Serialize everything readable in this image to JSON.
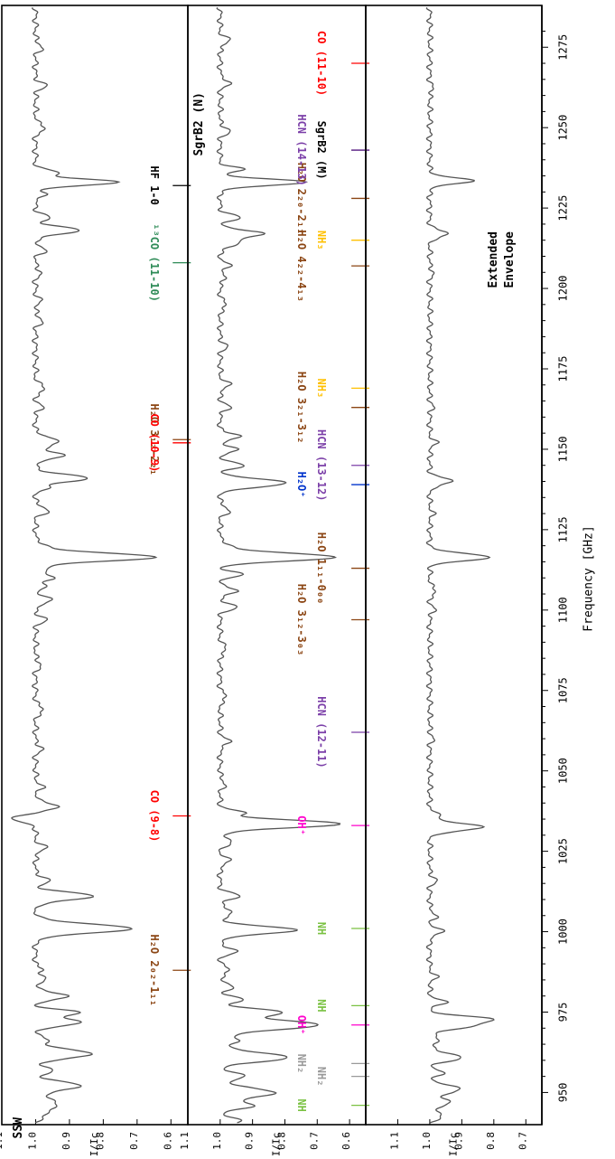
{
  "figure": {
    "xlabel": "Frequency [GHz]",
    "x_ticks": [
      950,
      975,
      1000,
      1025,
      1050,
      1075,
      1100,
      1125,
      1150,
      1175,
      1200,
      1225,
      1250,
      1275
    ],
    "colors": {
      "trace": "#555555",
      "co": "#ff0000",
      "h2o": "#8b4513",
      "hcn": "#7b3fa8",
      "nh": "#7ac142",
      "nh2": "#999999",
      "nh3": "#ffc000",
      "oh_plus": "#ff00cc",
      "h2o_plus": "#0033cc",
      "co13": "#2e8b57"
    }
  },
  "chart_data": [
    {
      "type": "line",
      "panel_label": "SSW",
      "ylabel": "I/Ic",
      "y_ticks": [
        1.1,
        1.0,
        0.9,
        0.8,
        0.7,
        0.6
      ],
      "ylim": [
        0.55,
        1.1
      ],
      "xlim": [
        940,
        1288
      ],
      "series": [
        {
          "continuum": 1.0,
          "features": [
            [
              944,
              0.96,
              1.5
            ],
            [
              947,
              0.94,
              1.2
            ],
            [
              952,
              0.87,
              1.4
            ],
            [
              957,
              0.95,
              1.0
            ],
            [
              962,
              0.83,
              1.3
            ],
            [
              966,
              0.96,
              1.0
            ],
            [
              972,
              0.87,
              1.3
            ],
            [
              975,
              0.88,
              0.8
            ],
            [
              980,
              0.9,
              1.0
            ],
            [
              985,
              0.97,
              1.0
            ],
            [
              988,
              0.975,
              0.7
            ],
            [
              1001,
              0.72,
              1.4
            ],
            [
              1011,
              0.83,
              1.2
            ],
            [
              1016,
              0.96,
              1.0
            ],
            [
              1026,
              0.97,
              1.0
            ],
            [
              1035,
              1.07,
              1.0
            ],
            [
              1039,
              0.93,
              1.0
            ],
            [
              1045,
              0.98,
              1.0
            ],
            [
              1057,
              0.98,
              0.9
            ],
            [
              1069,
              0.975,
              1.0
            ],
            [
              1083,
              0.985,
              1.0
            ],
            [
              1097,
              0.97,
              1.0
            ],
            [
              1103,
              0.95,
              1.0
            ],
            [
              1107,
              0.97,
              0.8
            ],
            [
              1110,
              0.94,
              0.9
            ],
            [
              1113,
              0.96,
              0.8
            ],
            [
              1116.5,
              0.64,
              1.2
            ],
            [
              1120,
              0.97,
              1.0
            ],
            [
              1131,
              0.96,
              1.0
            ],
            [
              1138,
              0.97,
              0.8
            ],
            [
              1141,
              0.85,
              1.2
            ],
            [
              1148,
              0.92,
              1.1
            ],
            [
              1151,
              0.96,
              0.8
            ],
            [
              1153,
              0.94,
              1.0
            ],
            [
              1163,
              0.98,
              1.0
            ],
            [
              1169,
              0.97,
              1.0
            ],
            [
              1190,
              0.98,
              1.0
            ],
            [
              1196,
              0.985,
              1.0
            ],
            [
              1205,
              0.985,
              1.0
            ],
            [
              1212,
              0.97,
              1.0
            ],
            [
              1218,
              0.87,
              1.1
            ],
            [
              1222,
              0.96,
              1.0
            ],
            [
              1229,
              0.97,
              0.8
            ],
            [
              1233,
              0.76,
              1.0
            ],
            [
              1236,
              0.93,
              0.8
            ],
            [
              1250,
              0.97,
              1.0
            ],
            [
              1263,
              0.97,
              1.0
            ],
            [
              1275,
              0.98,
              1.0
            ]
          ]
        }
      ],
      "annotations": [
        {
          "text": "H₂O 2₀₂-1₁₁",
          "x": 988,
          "color": "h2o"
        },
        {
          "text": "CO (9-8)",
          "x": 1036,
          "color": "co"
        },
        {
          "text": "H₂O 3₁₂-2₂₁",
          "x": 1153,
          "color": "h2o"
        },
        {
          "text": "CO (10-9)",
          "x": 1152,
          "color": "co"
        },
        {
          "text": "¹³CO (11-10)",
          "x": 1208,
          "color": "co13"
        },
        {
          "text": "HF 1-0",
          "x": 1232,
          "color": "black"
        }
      ]
    },
    {
      "type": "line",
      "panel_label": "SgrB2 (N)",
      "ylabel": "I/Ic",
      "y_ticks": [
        1.1,
        1.0,
        0.9,
        0.8,
        0.7,
        0.6
      ],
      "ylim": [
        0.55,
        1.1
      ],
      "xlim": [
        940,
        1288
      ],
      "series": [
        {
          "continuum": 1.0,
          "features": [
            [
              941,
              0.94,
              1.2
            ],
            [
              946,
              0.9,
              1.1
            ],
            [
              950,
              0.83,
              1.4
            ],
            [
              955,
              0.92,
              1.0
            ],
            [
              961,
              0.79,
              1.4
            ],
            [
              966,
              0.94,
              1.0
            ],
            [
              971,
              0.7,
              1.5
            ],
            [
              975,
              0.82,
              1.1
            ],
            [
              979,
              0.93,
              0.9
            ],
            [
              983,
              0.96,
              1.0
            ],
            [
              988,
              0.97,
              1.0
            ],
            [
              994,
              0.95,
              1.0
            ],
            [
              1000.5,
              0.77,
              1.2
            ],
            [
              1006,
              0.96,
              1.0
            ],
            [
              1011,
              0.94,
              1.0
            ],
            [
              1022,
              0.97,
              1.0
            ],
            [
              1028,
              0.96,
              1.0
            ],
            [
              1033.5,
              0.63,
              1.2
            ],
            [
              1037,
              0.93,
              0.8
            ],
            [
              1046,
              0.985,
              1.0
            ],
            [
              1059,
              0.97,
              1.0
            ],
            [
              1073,
              0.98,
              1.0
            ],
            [
              1088,
              0.98,
              1.0
            ],
            [
              1101,
              0.95,
              1.0
            ],
            [
              1106,
              0.94,
              0.8
            ],
            [
              1111,
              0.93,
              0.8
            ],
            [
              1116.5,
              0.64,
              1.2
            ],
            [
              1120,
              0.97,
              1.0
            ],
            [
              1131,
              0.97,
              1.0
            ],
            [
              1139.5,
              0.79,
              1.2
            ],
            [
              1145,
              0.93,
              1.0
            ],
            [
              1150,
              0.94,
              0.8
            ],
            [
              1154,
              0.93,
              0.8
            ],
            [
              1163,
              0.97,
              1.0
            ],
            [
              1170,
              0.97,
              1.0
            ],
            [
              1182,
              0.98,
              1.0
            ],
            [
              1195,
              0.98,
              1.0
            ],
            [
              1203,
              0.985,
              1.0
            ],
            [
              1207,
              0.97,
              1.0
            ],
            [
              1214,
              0.94,
              1.0
            ],
            [
              1217,
              0.86,
              1.0
            ],
            [
              1222,
              0.94,
              1.0
            ],
            [
              1233,
              0.74,
              1.0
            ],
            [
              1237,
              0.93,
              0.8
            ],
            [
              1249,
              0.97,
              1.0
            ],
            [
              1264,
              0.97,
              1.0
            ],
            [
              1277,
              0.97,
              1.0
            ]
          ]
        }
      ],
      "annotations": [
        {
          "text": "NH",
          "x": 946,
          "color": "nh"
        },
        {
          "text": "NH₂",
          "x": 955,
          "color": "nh2"
        },
        {
          "text": "NH₂",
          "x": 959,
          "color": "nh2"
        },
        {
          "text": "NH",
          "x": 977,
          "color": "nh"
        },
        {
          "text": "OH⁺",
          "x": 971,
          "color": "oh_plus"
        },
        {
          "text": "NH",
          "x": 1001,
          "color": "nh"
        },
        {
          "text": "OH⁺",
          "x": 1033,
          "color": "oh_plus"
        },
        {
          "text": "HCN (12-11)",
          "x": 1062,
          "color": "hcn"
        },
        {
          "text": "H₂O 3₁₂-3₀₃",
          "x": 1097,
          "color": "h2o"
        },
        {
          "text": "H₂O 1₁₁-0₀₀",
          "x": 1113,
          "color": "h2o"
        },
        {
          "text": "H₂O⁺",
          "x": 1139,
          "color": "h2o_plus"
        },
        {
          "text": "HCN (13-12)",
          "x": 1145,
          "color": "hcn"
        },
        {
          "text": "H₂O 3₂₁-3₁₂",
          "x": 1163,
          "color": "h2o"
        },
        {
          "text": "NH₃",
          "x": 1169,
          "color": "nh3"
        },
        {
          "text": "H₂O 4₂₂-4₁₃",
          "x": 1207,
          "color": "h2o"
        },
        {
          "text": "NH₃",
          "x": 1215,
          "color": "nh3"
        },
        {
          "text": "H₂O 2₂₀-2₁₁",
          "x": 1228,
          "color": "h2o"
        },
        {
          "text": "SgrB2 (M)",
          "x": 1243,
          "color": "black"
        },
        {
          "text": "HCN (14-13)",
          "x": 1243,
          "color": "hcn"
        },
        {
          "text": "CO (11-10)",
          "x": 1270,
          "color": "co"
        }
      ]
    },
    {
      "type": "line",
      "panel_label": "Extended Envelope",
      "ylabel": "I/Ic",
      "y_ticks": [
        1.1,
        1.0,
        0.9,
        0.8,
        0.7
      ],
      "ylim": [
        0.65,
        1.2
      ],
      "xlim": [
        940,
        1288
      ],
      "series": [
        {
          "continuum": 1.0,
          "features": [
            [
              943,
              0.96,
              1.2
            ],
            [
              947,
              0.93,
              1.0
            ],
            [
              951,
              0.9,
              1.2
            ],
            [
              956,
              0.96,
              1.0
            ],
            [
              961,
              0.9,
              1.2
            ],
            [
              966,
              0.97,
              1.0
            ],
            [
              971,
              0.86,
              1.3
            ],
            [
              973,
              0.84,
              0.8
            ],
            [
              978,
              0.95,
              0.9
            ],
            [
              986,
              0.98,
              1.0
            ],
            [
              1000,
              0.96,
              1.0
            ],
            [
              1005,
              0.98,
              1.0
            ],
            [
              1016,
              0.98,
              1.0
            ],
            [
              1032.5,
              0.83,
              1.1
            ],
            [
              1036,
              0.96,
              0.8
            ],
            [
              1060,
              0.99,
              1.0
            ],
            [
              1100,
              0.985,
              1.0
            ],
            [
              1106,
              0.98,
              1.0
            ],
            [
              1116.5,
              0.81,
              1.1
            ],
            [
              1130,
              0.99,
              1.0
            ],
            [
              1140,
              0.93,
              1.1
            ],
            [
              1152,
              0.98,
              1.0
            ],
            [
              1163,
              0.99,
              1.0
            ],
            [
              1205,
              0.99,
              1.0
            ],
            [
              1217,
              0.94,
              1.0
            ],
            [
              1233.5,
              0.87,
              1.0
            ],
            [
              1262,
              0.99,
              1.0
            ]
          ]
        }
      ],
      "annotations": []
    }
  ]
}
